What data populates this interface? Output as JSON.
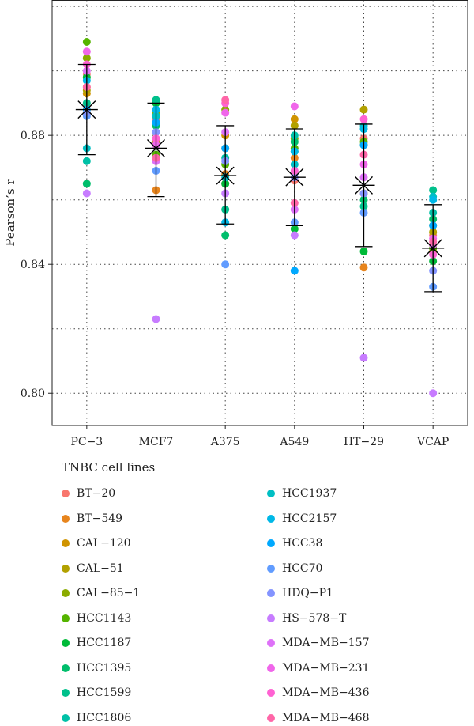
{
  "chart_data": {
    "type": "scatter",
    "ylabel": "Pearson’s r",
    "xlabel": "",
    "categories": [
      "PC−3",
      "MCF7",
      "A375",
      "A549",
      "HT−29",
      "VCAP"
    ],
    "ylim": [
      0.79,
      0.922
    ],
    "yticks": [
      0.8,
      0.84,
      0.88
    ],
    "yticklabels": [
      "0.80",
      "0.84",
      "0.88"
    ],
    "grid": true,
    "summary": [
      {
        "category": "PC−3",
        "mean": 0.888,
        "lower": 0.874,
        "upper": 0.902
      },
      {
        "category": "MCF7",
        "mean": 0.876,
        "lower": 0.861,
        "upper": 0.89
      },
      {
        "category": "A375",
        "mean": 0.8675,
        "lower": 0.8525,
        "upper": 0.883
      },
      {
        "category": "A549",
        "mean": 0.867,
        "lower": 0.852,
        "upper": 0.882
      },
      {
        "category": "HT−29",
        "mean": 0.8645,
        "lower": 0.8455,
        "upper": 0.8835
      },
      {
        "category": "VCAP",
        "mean": 0.845,
        "lower": 0.8315,
        "upper": 0.8585
      }
    ],
    "legend_title": "TNBC cell lines",
    "legend_position": "bottom",
    "series": [
      {
        "name": "BT−20",
        "color": "#F8766D",
        "values": [
          0.899,
          0.885,
          0.865,
          0.866,
          0.879,
          0.849
        ]
      },
      {
        "name": "BT−549",
        "color": "#E7851E",
        "values": [
          0.895,
          0.863,
          0.868,
          0.873,
          0.839,
          0.846
        ]
      },
      {
        "name": "CAL−120",
        "color": "#D09400",
        "values": [
          0.893,
          0.879,
          0.88,
          0.885,
          0.862,
          0.844
        ]
      },
      {
        "name": "CAL−51",
        "color": "#B2A100",
        "values": [
          0.894,
          0.878,
          0.876,
          0.883,
          0.888,
          0.85
        ]
      },
      {
        "name": "CAL−85−1",
        "color": "#8BAB00",
        "values": [
          0.904,
          0.887,
          0.888,
          0.879,
          0.877,
          0.852
        ]
      },
      {
        "name": "HCC1143",
        "color": "#55B400",
        "values": [
          0.909,
          0.874,
          0.871,
          0.876,
          0.878,
          0.845
        ]
      },
      {
        "name": "HCC1187",
        "color": "#00BA38",
        "values": [
          0.898,
          0.89,
          0.865,
          0.851,
          0.844,
          0.841
        ]
      },
      {
        "name": "HCC1395",
        "color": "#00BE6C",
        "values": [
          0.865,
          0.883,
          0.849,
          0.878,
          0.86,
          0.854
        ]
      },
      {
        "name": "HCC1599",
        "color": "#00C08B",
        "values": [
          0.89,
          0.891,
          0.857,
          0.875,
          0.858,
          0.863
        ]
      },
      {
        "name": "HCC1806",
        "color": "#00C1A7",
        "values": [
          0.872,
          0.886,
          0.873,
          0.88,
          0.882,
          0.856
        ]
      },
      {
        "name": "HCC1937",
        "color": "#00BFC4",
        "values": [
          0.876,
          0.886,
          0.867,
          0.871,
          0.883,
          0.861
        ]
      },
      {
        "name": "HCC2157",
        "color": "#00B8E7",
        "values": [
          0.897,
          0.888,
          0.853,
          0.875,
          0.882,
          0.86
        ]
      },
      {
        "name": "HCC38",
        "color": "#00A9FF",
        "values": [
          0.888,
          0.884,
          0.876,
          0.838,
          0.877,
          0.852
        ]
      },
      {
        "name": "HCC70",
        "color": "#619CFF",
        "values": [
          0.886,
          0.869,
          0.84,
          0.853,
          0.856,
          0.833
        ]
      },
      {
        "name": "HDQ−P1",
        "color": "#8494FF",
        "values": [
          0.887,
          0.881,
          0.872,
          0.867,
          0.862,
          0.838
        ]
      },
      {
        "name": "HS−578−T",
        "color": "#C77CFF",
        "values": [
          0.862,
          0.823,
          0.862,
          0.849,
          0.811,
          0.8
        ]
      },
      {
        "name": "MDA−MB−157",
        "color": "#DE71F8",
        "values": [
          0.9,
          0.872,
          0.881,
          0.857,
          0.867,
          0.846
        ]
      },
      {
        "name": "MDA−MB−231",
        "color": "#F066EA",
        "values": [
          0.906,
          0.877,
          0.887,
          0.889,
          0.871,
          0.848
        ]
      },
      {
        "name": "MDA−MB−436",
        "color": "#FF62D3",
        "values": [
          0.902,
          0.879,
          0.89,
          0.869,
          0.885,
          0.843
        ]
      },
      {
        "name": "MDA−MB−468",
        "color": "#FF66A8",
        "values": [
          0.895,
          0.873,
          0.891,
          0.859,
          0.874,
          0.847
        ]
      }
    ]
  }
}
